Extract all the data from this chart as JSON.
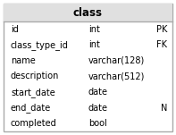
{
  "title": "class",
  "header_bg": "#e0e0e0",
  "header_text_color": "#000000",
  "body_bg": "#ffffff",
  "border_color": "#aaaaaa",
  "rows": [
    {
      "field": "id",
      "type": "int",
      "constraint": "PK"
    },
    {
      "field": "class_type_id",
      "type": "int",
      "constraint": "FK"
    },
    {
      "field": "name",
      "type": "varchar(128)",
      "constraint": ""
    },
    {
      "field": "description",
      "type": "varchar(512)",
      "constraint": ""
    },
    {
      "field": "start_date",
      "type": "date",
      "constraint": ""
    },
    {
      "field": "end_date",
      "type": "date",
      "constraint": "N"
    },
    {
      "field": "completed",
      "type": "bool",
      "constraint": ""
    }
  ],
  "font_size": 7.0,
  "title_font_size": 8.5,
  "fig_width": 1.97,
  "fig_height": 1.51,
  "dpi": 100
}
